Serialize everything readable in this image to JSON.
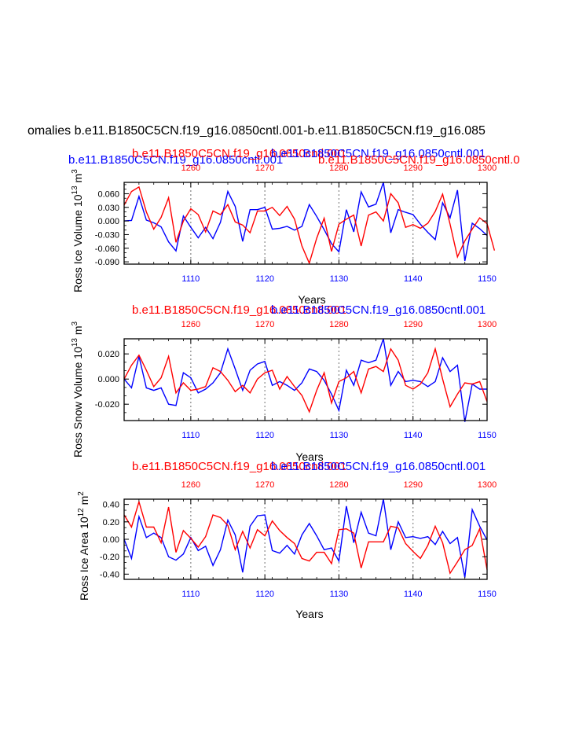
{
  "figure_title": "omalies b.e11.B1850C5CN.f19_g16.0850cntl.001-b.e11.B1850C5CN.f19_g16.085",
  "colors": {
    "series_a": "#0000ff",
    "series_b": "#ff0000",
    "grid": "#888888",
    "axis": "#000000"
  },
  "chart_data": [
    {
      "type": "line",
      "title_series_a": "b.e11.B1850C5CN.f19_g16.0850cntl.001",
      "title_series_b": "b.e11.B1850C5CN.f19_g16.0850cntl.001",
      "extra_title_a": "b.e11.B1850C5CN.f19_g16.0850cntl.001",
      "extra_title_b": "b.e11.B1850C5CN.f19_g16.0850cntl.0",
      "ylabel_main": "Ross Ice Volume 10",
      "ylabel_exp": "13",
      "ylabel_unit": " m",
      "ylabel_unit_exp": "3",
      "xlabel": "Years",
      "xlim_bottom": [
        1101,
        1150
      ],
      "xlim_top": [
        1251,
        1300
      ],
      "ylim": [
        -0.095,
        0.085
      ],
      "yticks": [
        0.06,
        0.03,
        0.0,
        -0.03,
        -0.06,
        -0.09
      ],
      "ytick_labels": [
        "0.060",
        "0.030",
        "0.000",
        "-0.030",
        "-0.060",
        "-0.090"
      ],
      "xticks_bottom": [
        1110,
        1120,
        1130,
        1140,
        1150
      ],
      "xticks_top": [
        1260,
        1270,
        1280,
        1290,
        1300
      ],
      "series": [
        {
          "name": "b.e11.B1850C5CN.f19_g16.0850cntl.001",
          "color": "#0000ff",
          "axis": "bottom",
          "values": [
            0.0,
            0.001,
            0.054,
            0.002,
            -0.004,
            -0.013,
            -0.046,
            -0.066,
            0.011,
            -0.014,
            -0.037,
            -0.014,
            -0.039,
            -0.003,
            0.065,
            0.032,
            -0.045,
            0.025,
            0.025,
            0.03,
            -0.018,
            -0.016,
            -0.012,
            -0.02,
            -0.012,
            0.036,
            0.01,
            -0.019,
            -0.05,
            -0.068,
            0.025,
            -0.024,
            0.064,
            0.031,
            0.037,
            0.085,
            -0.026,
            0.025,
            0.019,
            0.014,
            -0.007,
            -0.025,
            -0.041,
            0.04,
            0.007,
            0.068,
            -0.088,
            -0.005,
            -0.017,
            -0.032
          ]
        },
        {
          "name": "b.e11.B1850C5CN.f19_g16.0850cntl.001",
          "color": "#ff0000",
          "axis": "top",
          "values": [
            0.035,
            0.065,
            0.075,
            0.02,
            -0.018,
            0.008,
            0.051,
            -0.047,
            0.0,
            0.027,
            0.014,
            -0.024,
            0.022,
            0.014,
            0.036,
            -0.002,
            -0.009,
            -0.026,
            0.022,
            0.022,
            0.03,
            0.012,
            0.032,
            0.004,
            -0.055,
            -0.093,
            -0.038,
            0.006,
            -0.067,
            -0.007,
            0.004,
            0.013,
            -0.055,
            0.013,
            0.02,
            0.0,
            0.06,
            0.04,
            -0.014,
            -0.008,
            -0.016,
            -0.005,
            0.021,
            0.059,
            -0.007,
            -0.079,
            -0.044,
            -0.018,
            0.007,
            -0.006,
            -0.065
          ]
        }
      ]
    },
    {
      "type": "line",
      "title_series_a": "b.e11.B1850C5CN.f19_g16.0850cntl.001",
      "title_series_b": "b.e11.B1850C5CN.f19_g16.0850cntl.001",
      "ylabel_main": "Ross Snow Volume 10",
      "ylabel_exp": "13",
      "ylabel_unit": " m",
      "ylabel_unit_exp": "3",
      "xlabel": "Years",
      "xlim_bottom": [
        1101,
        1150
      ],
      "xlim_top": [
        1251,
        1300
      ],
      "ylim": [
        -0.033,
        0.032
      ],
      "yticks": [
        0.02,
        0.0,
        -0.02
      ],
      "ytick_labels": [
        "0.020",
        "0.000",
        "-0.020"
      ],
      "xticks_bottom": [
        1110,
        1120,
        1130,
        1140,
        1150
      ],
      "xticks_top": [
        1260,
        1270,
        1280,
        1290,
        1300
      ],
      "series": [
        {
          "name": "b.e11.B1850C5CN.f19_g16.0850cntl.001",
          "color": "#0000ff",
          "axis": "bottom",
          "values": [
            0.0,
            -0.007,
            0.018,
            -0.007,
            -0.009,
            -0.007,
            -0.02,
            -0.021,
            0.005,
            0.001,
            -0.011,
            -0.008,
            -0.003,
            0.005,
            0.024,
            0.008,
            -0.009,
            0.007,
            0.012,
            0.014,
            -0.005,
            -0.002,
            -0.005,
            -0.009,
            -0.003,
            0.008,
            0.006,
            -0.001,
            -0.012,
            -0.025,
            0.007,
            -0.005,
            0.015,
            0.013,
            0.015,
            0.032,
            -0.005,
            0.006,
            -0.002,
            -0.001,
            -0.002,
            -0.006,
            -0.002,
            0.017,
            0.006,
            0.011,
            -0.034,
            -0.004,
            -0.008,
            -0.008
          ]
        },
        {
          "name": "b.e11.B1850C5CN.f19_g16.0850cntl.001",
          "color": "#ff0000",
          "axis": "top",
          "values": [
            0.0,
            0.011,
            0.019,
            0.007,
            -0.006,
            0.001,
            0.018,
            -0.011,
            -0.003,
            -0.009,
            -0.008,
            -0.006,
            0.009,
            0.006,
            -0.001,
            -0.01,
            -0.005,
            -0.011,
            0.0,
            0.005,
            0.007,
            -0.008,
            0.002,
            -0.006,
            -0.013,
            -0.026,
            -0.009,
            0.005,
            -0.019,
            -0.002,
            0.001,
            0.006,
            -0.011,
            0.008,
            0.01,
            0.006,
            0.024,
            0.015,
            -0.005,
            -0.008,
            -0.004,
            0.005,
            0.024,
            0.0,
            -0.022,
            -0.012,
            -0.003,
            -0.004,
            -0.002,
            -0.018
          ]
        }
      ]
    },
    {
      "type": "line",
      "title_series_a": "b.e11.B1850C5CN.f19_g16.0850cntl.001",
      "title_series_b": "b.e11.B1850C5CN.f19_g16.0850cntl.001",
      "ylabel_main": "Ross Ice Area 10",
      "ylabel_exp": "12",
      "ylabel_unit": " m",
      "ylabel_unit_exp": "2",
      "xlabel": "Years",
      "xlim_bottom": [
        1101,
        1150
      ],
      "xlim_top": [
        1251,
        1300
      ],
      "ylim": [
        -0.46,
        0.46
      ],
      "yticks": [
        0.4,
        0.2,
        0.0,
        -0.2,
        -0.4
      ],
      "ytick_labels": [
        "0.40",
        "0.20",
        "0.00",
        "-0.20",
        "-0.40"
      ],
      "xticks_bottom": [
        1110,
        1120,
        1130,
        1140,
        1150
      ],
      "xticks_top": [
        1260,
        1270,
        1280,
        1290,
        1300
      ],
      "series": [
        {
          "name": "b.e11.B1850C5CN.f19_g16.0850cntl.001",
          "color": "#0000ff",
          "axis": "bottom",
          "values": [
            0.0,
            -0.22,
            0.26,
            0.02,
            0.07,
            0.02,
            -0.2,
            -0.24,
            -0.17,
            0.02,
            -0.13,
            -0.08,
            -0.3,
            -0.12,
            0.22,
            0.05,
            -0.38,
            0.15,
            0.27,
            0.28,
            -0.13,
            -0.16,
            -0.07,
            -0.17,
            0.05,
            0.18,
            0.04,
            -0.12,
            -0.1,
            -0.25,
            0.38,
            -0.04,
            0.31,
            0.07,
            0.04,
            0.46,
            -0.12,
            0.2,
            0.02,
            0.03,
            0.01,
            0.03,
            -0.06,
            0.09,
            -0.05,
            0.02,
            -0.44,
            0.34,
            0.15,
            -0.01
          ]
        },
        {
          "name": "b.e11.B1850C5CN.f19_g16.0850cntl.001",
          "color": "#ff0000",
          "axis": "top",
          "values": [
            0.28,
            0.14,
            0.43,
            0.14,
            0.14,
            -0.04,
            0.37,
            -0.15,
            0.1,
            0.01,
            -0.09,
            0.03,
            0.28,
            0.25,
            0.16,
            -0.12,
            0.09,
            -0.1,
            0.11,
            0.04,
            0.21,
            0.1,
            0.02,
            -0.05,
            -0.22,
            -0.25,
            -0.15,
            -0.15,
            -0.28,
            0.11,
            0.12,
            0.07,
            -0.33,
            -0.03,
            -0.03,
            -0.03,
            0.15,
            0.13,
            -0.05,
            -0.14,
            -0.22,
            -0.07,
            0.15,
            -0.04,
            -0.39,
            -0.26,
            -0.12,
            -0.07,
            0.12,
            -0.35
          ]
        }
      ]
    }
  ]
}
